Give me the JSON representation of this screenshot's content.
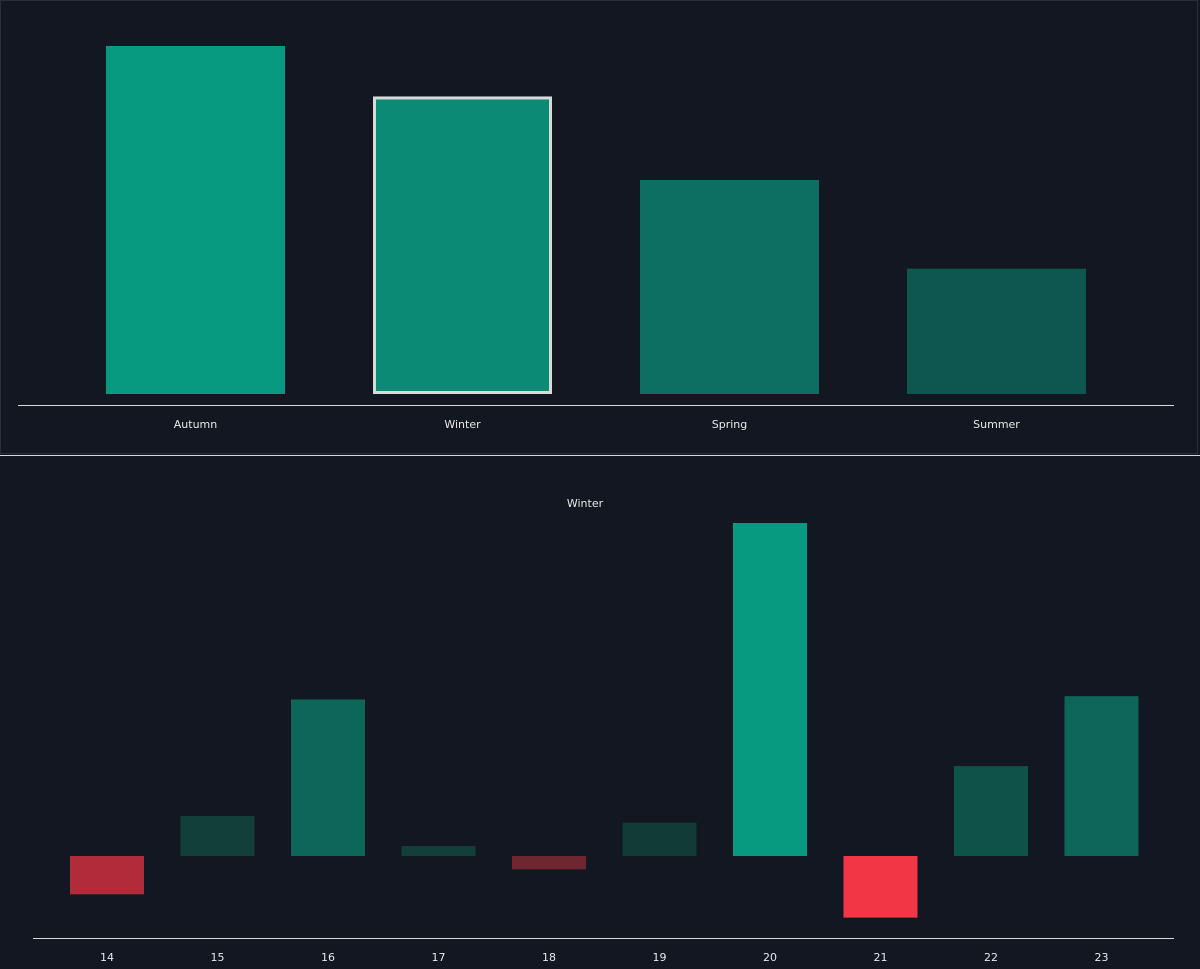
{
  "chart_data": [
    {
      "type": "bar",
      "categories": [
        "Autumn",
        "Winter",
        "Spring",
        "Summer"
      ],
      "values": [
        100,
        85.5,
        61.5,
        36
      ],
      "colors": [
        "#089981",
        "#0b8b76",
        "#0d6f61",
        "#0e5650"
      ],
      "selected": "Winter",
      "grid": false
    },
    {
      "type": "bar",
      "title": "Winter",
      "categories": [
        "14",
        "15",
        "16",
        "17",
        "18",
        "19",
        "20",
        "21",
        "22",
        "23"
      ],
      "values": [
        -11.5,
        12,
        47,
        3,
        -4,
        10,
        100,
        -18.5,
        27,
        48
      ],
      "colors": [
        "#b22b3a",
        "#133f3a",
        "#0d6659",
        "#133f3a",
        "#6e2630",
        "#113b37",
        "#089981",
        "#f23645",
        "#0e5249",
        "#0d6659"
      ],
      "grid": false
    }
  ],
  "colors": {
    "background": "#131722",
    "axis": "#d9d9d9",
    "text": "#e8e8e8",
    "selection_outline": "#d9d9d9"
  }
}
